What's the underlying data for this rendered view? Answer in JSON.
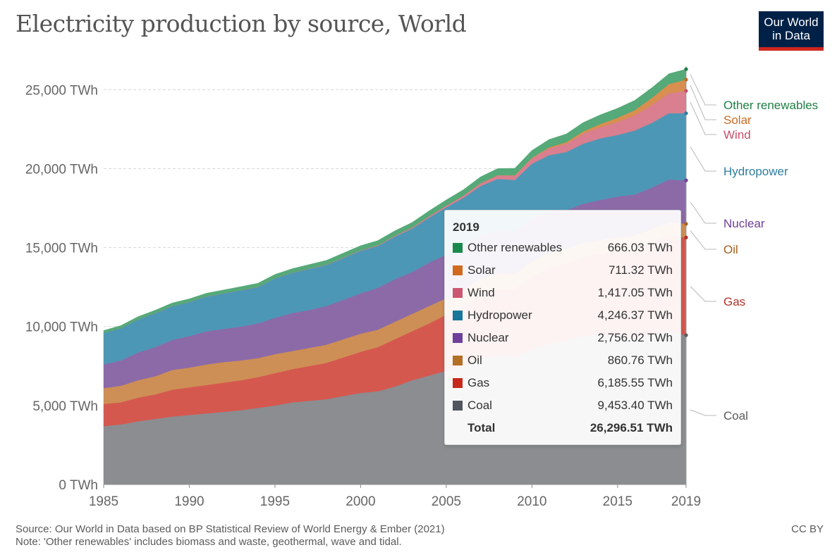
{
  "header": {
    "title": "Electricity production by source, World",
    "logo_line1": "Our World",
    "logo_line2": "in Data"
  },
  "footer": {
    "source": "Source: Our World in Data based on BP Statistical Review of World Energy & Ember (2021)",
    "note": "Note: 'Other renewables' includes biomass and waste, geothermal, wave and tidal.",
    "license": "CC BY"
  },
  "tooltip": {
    "year": "2019",
    "rows": [
      {
        "name": "Other renewables",
        "value": "666.03 TWh",
        "color": "#1a8a4c"
      },
      {
        "name": "Solar",
        "value": "711.32 TWh",
        "color": "#d06a1e"
      },
      {
        "name": "Wind",
        "value": "1,417.05 TWh",
        "color": "#cc5770"
      },
      {
        "name": "Hydropower",
        "value": "4,246.37 TWh",
        "color": "#18769a"
      },
      {
        "name": "Nuclear",
        "value": "2,756.02 TWh",
        "color": "#6f3f9b"
      },
      {
        "name": "Oil",
        "value": "860.76 TWh",
        "color": "#b46e25"
      },
      {
        "name": "Gas",
        "value": "6,185.55 TWh",
        "color": "#c8281c"
      },
      {
        "name": "Coal",
        "value": "9,453.40 TWh",
        "color": "#50555e"
      }
    ],
    "total_label": "Total",
    "total_value": "26,296.51 TWh"
  },
  "chart_data": {
    "type": "area",
    "stacked": true,
    "title": "Electricity production by source, World",
    "xlabel": "",
    "ylabel": "",
    "x": [
      1985,
      1986,
      1987,
      1988,
      1989,
      1990,
      1991,
      1992,
      1993,
      1994,
      1995,
      1996,
      1997,
      1998,
      1999,
      2000,
      2001,
      2002,
      2003,
      2004,
      2005,
      2006,
      2007,
      2008,
      2009,
      2010,
      2011,
      2012,
      2013,
      2014,
      2015,
      2016,
      2017,
      2018,
      2019
    ],
    "xlim": [
      1985,
      2019
    ],
    "ylim": [
      0,
      28000
    ],
    "x_ticks": [
      "1985",
      "1990",
      "1995",
      "2000",
      "2005",
      "2010",
      "2015",
      "2019"
    ],
    "y_ticks": [
      "0 TWh",
      "5,000 TWh",
      "10,000 TWh",
      "15,000 TWh",
      "20,000 TWh",
      "25,000 TWh"
    ],
    "y_tick_values": [
      0,
      5000,
      10000,
      15000,
      20000,
      25000
    ],
    "grid": "horizontal-dashed",
    "legend": "right, end labels",
    "series": [
      {
        "name": "Coal",
        "color": "#8b8d91",
        "values": [
          3700,
          3800,
          4000,
          4150,
          4300,
          4400,
          4500,
          4600,
          4700,
          4850,
          5000,
          5200,
          5300,
          5400,
          5600,
          5800,
          5900,
          6200,
          6600,
          6900,
          7200,
          7500,
          8000,
          8200,
          8100,
          8500,
          8900,
          9100,
          9400,
          9500,
          9400,
          9300,
          9500,
          9700,
          9453
        ]
      },
      {
        "name": "Gas",
        "color": "#d5584f",
        "values": [
          1400,
          1400,
          1500,
          1550,
          1700,
          1750,
          1800,
          1850,
          1900,
          1950,
          2050,
          2100,
          2200,
          2300,
          2450,
          2600,
          2800,
          3000,
          3100,
          3300,
          3550,
          3750,
          4000,
          4150,
          4250,
          4650,
          4800,
          4900,
          5000,
          5100,
          5400,
          5600,
          5800,
          6050,
          6186
        ]
      },
      {
        "name": "Oil",
        "color": "#cd8f55",
        "values": [
          1000,
          1050,
          1100,
          1150,
          1250,
          1250,
          1300,
          1300,
          1250,
          1200,
          1200,
          1150,
          1150,
          1150,
          1150,
          1150,
          1100,
          1100,
          1100,
          1100,
          1050,
          1050,
          1050,
          1000,
          980,
          960,
          950,
          900,
          880,
          870,
          860,
          860,
          860,
          860,
          861
        ]
      },
      {
        "name": "Nuclear",
        "color": "#8c6aa8",
        "values": [
          1500,
          1600,
          1750,
          1850,
          1900,
          2000,
          2100,
          2100,
          2150,
          2200,
          2300,
          2400,
          2400,
          2450,
          2500,
          2550,
          2650,
          2700,
          2650,
          2750,
          2750,
          2800,
          2750,
          2750,
          2700,
          2750,
          2650,
          2450,
          2500,
          2550,
          2570,
          2600,
          2640,
          2700,
          2756
        ]
      },
      {
        "name": "Hydropower",
        "color": "#4d97b6",
        "values": [
          2000,
          2050,
          2100,
          2150,
          2150,
          2150,
          2200,
          2250,
          2300,
          2300,
          2500,
          2550,
          2600,
          2600,
          2650,
          2700,
          2650,
          2700,
          2750,
          2850,
          3000,
          3050,
          3100,
          3250,
          3250,
          3450,
          3550,
          3700,
          3800,
          3900,
          3900,
          4050,
          4100,
          4200,
          4246
        ]
      },
      {
        "name": "Wind",
        "color": "#d97f8f",
        "values": [
          0,
          0,
          0,
          0,
          0,
          5,
          5,
          5,
          5,
          10,
          10,
          10,
          15,
          20,
          25,
          30,
          40,
          50,
          65,
          85,
          105,
          130,
          170,
          220,
          280,
          340,
          440,
          520,
          640,
          710,
          830,
          960,
          1130,
          1270,
          1417
        ]
      },
      {
        "name": "Solar",
        "color": "#d88f4f",
        "values": [
          0,
          0,
          0,
          0,
          0,
          0,
          0,
          0,
          0,
          0,
          0,
          0,
          0,
          0,
          0,
          1,
          1,
          2,
          2,
          3,
          4,
          6,
          8,
          12,
          20,
          32,
          63,
          100,
          140,
          200,
          260,
          330,
          450,
          580,
          711
        ]
      },
      {
        "name": "Other renewables",
        "color": "#56a978",
        "values": [
          150,
          160,
          170,
          180,
          190,
          200,
          205,
          210,
          220,
          230,
          240,
          250,
          260,
          270,
          280,
          290,
          300,
          310,
          320,
          340,
          360,
          380,
          400,
          420,
          440,
          470,
          490,
          520,
          560,
          580,
          600,
          620,
          640,
          650,
          666
        ]
      }
    ]
  }
}
